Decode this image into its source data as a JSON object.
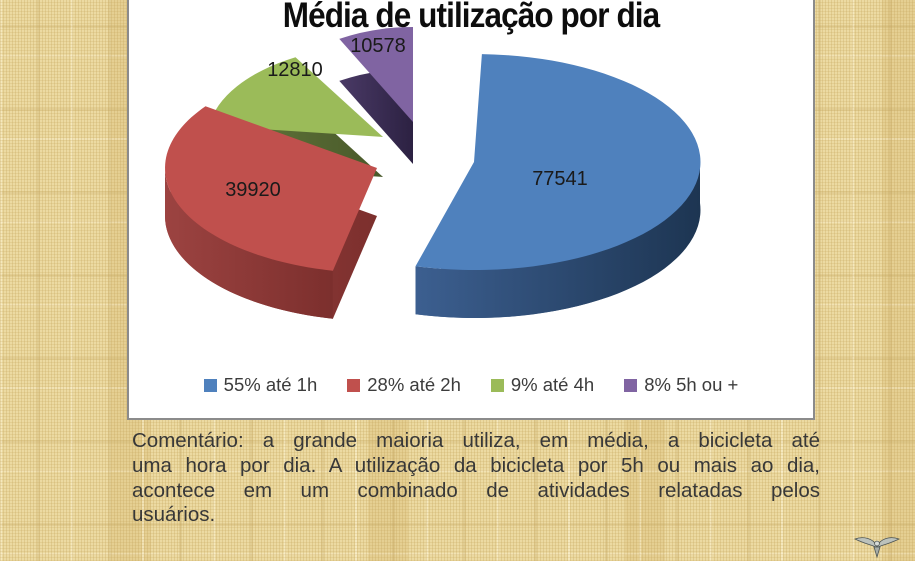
{
  "slide": {
    "comment_lines": [
      "Comentário: a grande maioria utiliza, em média, a bicicleta até",
      "uma hora por dia. A utilização da bicicleta por 5h ou mais ao dia,",
      "acontece em um combinado de atividades relatadas pelos",
      "usuários."
    ],
    "logo": "winged-emblem"
  },
  "chart_data": {
    "type": "pie",
    "style": "3d-exploded-pie",
    "title": "Média de utilização por dia",
    "labels": [
      "55% até 1h",
      "28% até 2h",
      "9% até 4h",
      "8% 5h ou +"
    ],
    "values": [
      77541,
      39920,
      12810,
      10578
    ],
    "percents": [
      55,
      28,
      9,
      8
    ],
    "colors": [
      "#4F81BD",
      "#C0504D",
      "#9BBB59",
      "#8064A2"
    ],
    "side_colors_light": [
      "#3C5F90",
      "#9C4341",
      "#66793C",
      "#4A3A66"
    ],
    "side_colors_dark": [
      "#1D3552",
      "#7C2F2D",
      "#48592A",
      "#2C2142"
    ],
    "legend_position": "bottom",
    "background": "#FFFFFF"
  }
}
